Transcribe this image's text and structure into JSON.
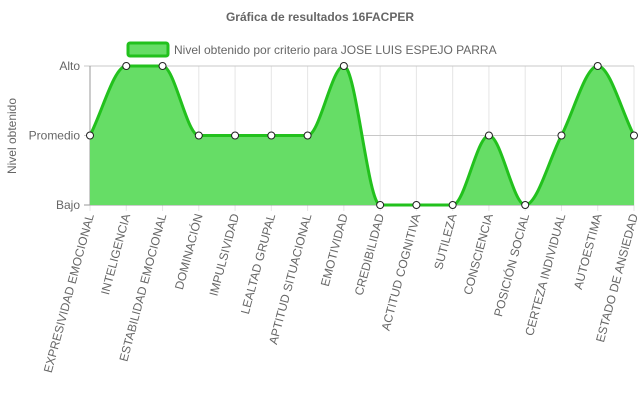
{
  "chart_data": {
    "type": "area",
    "title": "Gráfica de resultados 16FACPER",
    "ylabel": "Nivel obtenido",
    "xlabel": "",
    "y_levels": [
      "Bajo",
      "Promedio",
      "Alto"
    ],
    "ylim": [
      0,
      2
    ],
    "grid": true,
    "legend_position": "top",
    "categories": [
      "EXPRESIVIDAD EMOCIONAL",
      "INTELIGENCIA",
      "ESTABILIDAD EMOCIONAL",
      "DOMINACIÓN",
      "IMPULSIVIDAD",
      "LEALTAD GRUPAL",
      "APTITUD SITUACIONAL",
      "EMOTIVIDAD",
      "CREDIBILIDAD",
      "ACTITUD COGNITIVA",
      "SUTILEZA",
      "CONSCIENCIA",
      "POSICIÓN SOCIAL",
      "CERTEZA INDIVIDUAL",
      "AUTOESTIMA",
      "ESTADO DE ANSIEDAD"
    ],
    "series": [
      {
        "name": "Nivel obtenido por criterio para JOSE LUIS ESPEJO PARRA",
        "values": [
          1,
          2,
          2,
          1,
          1,
          1,
          1,
          2,
          0,
          0,
          0,
          1,
          0,
          1,
          2,
          1
        ],
        "line_color": "#22c11d",
        "fill_color": "#66dd66"
      }
    ]
  }
}
